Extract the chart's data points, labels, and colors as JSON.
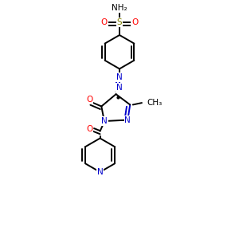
{
  "background_color": "#ffffff",
  "figsize": [
    3.0,
    3.0
  ],
  "dpi": 100,
  "atom_colors": {
    "N": "#0000cc",
    "O": "#ff0000",
    "S": "#808000",
    "C": "#000000"
  },
  "bond_color": "#000000",
  "bond_width": 1.4,
  "font_size_atom": 7.5,
  "xlim": [
    0,
    10
  ],
  "ylim": [
    0,
    10
  ]
}
